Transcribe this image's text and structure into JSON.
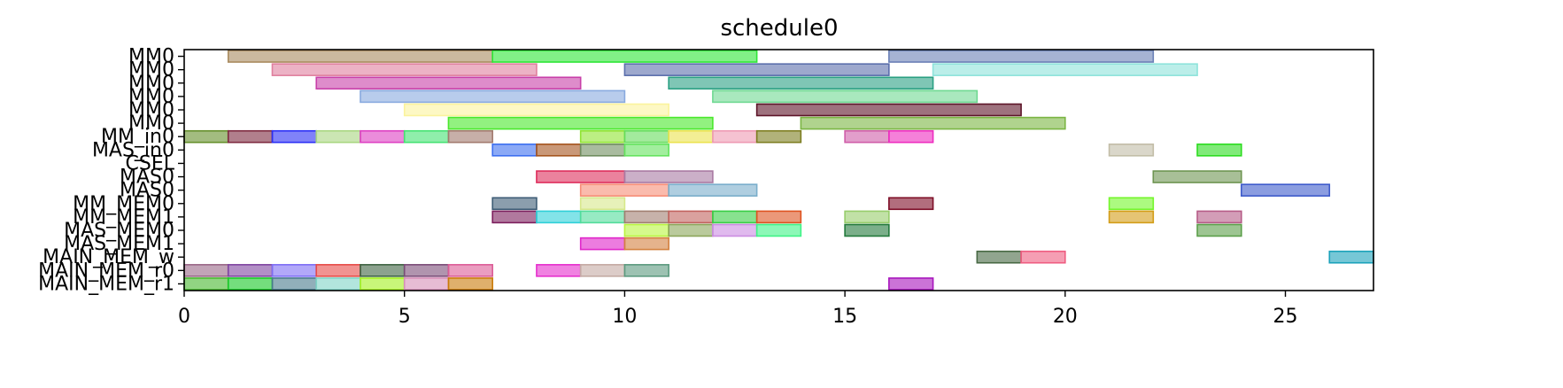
{
  "chart_data": {
    "type": "gantt",
    "title": "schedule0",
    "xlabel": "",
    "ylabel": "",
    "xlim": [
      0,
      27
    ],
    "xticks": [
      0,
      5,
      10,
      15,
      20,
      25
    ],
    "grid": false,
    "rows": [
      "MM0",
      "MM0",
      "MM0",
      "MM0",
      "MM0",
      "MM0",
      "MM_in0",
      "MAS_in0",
      "CSEL",
      "MAS0",
      "MAS0",
      "MM_MEM0",
      "MM_MEM1",
      "MAS_MEM0",
      "MAS_MEM1",
      "MAIN_MEM_w",
      "MAIN_MEM_r0",
      "MAIN_MEM_r1"
    ],
    "tasks": [
      {
        "row": 0,
        "start": 1,
        "end": 7,
        "color": "#a98b5f"
      },
      {
        "row": 0,
        "start": 7,
        "end": 13,
        "color": "#2ee637"
      },
      {
        "row": 0,
        "start": 16,
        "end": 22,
        "color": "#6a80b6"
      },
      {
        "row": 1,
        "start": 2,
        "end": 8,
        "color": "#e07f9e"
      },
      {
        "row": 1,
        "start": 10,
        "end": 16,
        "color": "#5b6eac"
      },
      {
        "row": 1,
        "start": 17,
        "end": 23,
        "color": "#8ee3db"
      },
      {
        "row": 2,
        "start": 3,
        "end": 9,
        "color": "#c83fa9"
      },
      {
        "row": 2,
        "start": 11,
        "end": 17,
        "color": "#2aa083"
      },
      {
        "row": 3,
        "start": 4,
        "end": 10,
        "color": "#89aadf"
      },
      {
        "row": 3,
        "start": 12,
        "end": 18,
        "color": "#6fd992"
      },
      {
        "row": 4,
        "start": 5,
        "end": 11,
        "color": "#fbf39c"
      },
      {
        "row": 4,
        "start": 13,
        "end": 19,
        "color": "#5d1428"
      },
      {
        "row": 5,
        "start": 6,
        "end": 12,
        "color": "#4ae82c"
      },
      {
        "row": 5,
        "start": 14,
        "end": 20,
        "color": "#7bb543"
      },
      {
        "row": 6,
        "start": 0,
        "end": 1,
        "color": "#658f2b"
      },
      {
        "row": 6,
        "start": 1,
        "end": 2,
        "color": "#7d2a3f"
      },
      {
        "row": 6,
        "start": 2,
        "end": 3,
        "color": "#2b2ff5"
      },
      {
        "row": 6,
        "start": 3,
        "end": 4,
        "color": "#a9d681"
      },
      {
        "row": 6,
        "start": 4,
        "end": 5,
        "color": "#de40c3"
      },
      {
        "row": 6,
        "start": 5,
        "end": 6,
        "color": "#45e273"
      },
      {
        "row": 6,
        "start": 6,
        "end": 7,
        "color": "#a27a6e"
      },
      {
        "row": 6,
        "start": 9,
        "end": 10,
        "color": "#8fe431"
      },
      {
        "row": 6,
        "start": 10,
        "end": 11,
        "color": "#65dc5c"
      },
      {
        "row": 6,
        "start": 11,
        "end": 12,
        "color": "#ebe34f"
      },
      {
        "row": 6,
        "start": 12,
        "end": 13,
        "color": "#ee9ab3"
      },
      {
        "row": 6,
        "start": 13,
        "end": 14,
        "color": "#7d7e21"
      },
      {
        "row": 6,
        "start": 15,
        "end": 16,
        "color": "#cf5da8"
      },
      {
        "row": 6,
        "start": 16,
        "end": 17,
        "color": "#ee2cc0"
      },
      {
        "row": 7,
        "start": 7,
        "end": 8,
        "color": "#3d6ff0"
      },
      {
        "row": 7,
        "start": 8,
        "end": 9,
        "color": "#a5541e"
      },
      {
        "row": 7,
        "start": 9,
        "end": 10,
        "color": "#6f8d5f"
      },
      {
        "row": 7,
        "start": 10,
        "end": 11,
        "color": "#64e35e"
      },
      {
        "row": 7,
        "start": 21,
        "end": 22,
        "color": "#c2bda7"
      },
      {
        "row": 7,
        "start": 23,
        "end": 24,
        "color": "#2cdc20"
      },
      {
        "row": 9,
        "start": 8,
        "end": 10,
        "color": "#de2e5c"
      },
      {
        "row": 9,
        "start": 10,
        "end": 12,
        "color": "#a97aa3"
      },
      {
        "row": 9,
        "start": 22,
        "end": 24,
        "color": "#6e9552"
      },
      {
        "row": 10,
        "start": 9,
        "end": 11,
        "color": "#f78d77"
      },
      {
        "row": 10,
        "start": 11,
        "end": 13,
        "color": "#7aaecb"
      },
      {
        "row": 10,
        "start": 24,
        "end": 26,
        "color": "#3e5bcb"
      },
      {
        "row": 11,
        "start": 7,
        "end": 8,
        "color": "#3e5d76"
      },
      {
        "row": 11,
        "start": 9,
        "end": 10,
        "color": "#d7e88b"
      },
      {
        "row": 11,
        "start": 16,
        "end": 17,
        "color": "#7e0e27"
      },
      {
        "row": 11,
        "start": 21,
        "end": 22,
        "color": "#74f62b"
      },
      {
        "row": 12,
        "start": 7,
        "end": 8,
        "color": "#7d1f5e"
      },
      {
        "row": 12,
        "start": 8,
        "end": 9,
        "color": "#2ed0d8"
      },
      {
        "row": 12,
        "start": 9,
        "end": 10,
        "color": "#52dc9b"
      },
      {
        "row": 12,
        "start": 10,
        "end": 11,
        "color": "#a17f71"
      },
      {
        "row": 12,
        "start": 11,
        "end": 12,
        "color": "#c2635e"
      },
      {
        "row": 12,
        "start": 12,
        "end": 13,
        "color": "#38cf45"
      },
      {
        "row": 12,
        "start": 13,
        "end": 14,
        "color": "#de5320"
      },
      {
        "row": 12,
        "start": 15,
        "end": 16,
        "color": "#97cd6b"
      },
      {
        "row": 12,
        "start": 21,
        "end": 22,
        "color": "#d39d17"
      },
      {
        "row": 12,
        "start": 23,
        "end": 24,
        "color": "#b65c87"
      },
      {
        "row": 13,
        "start": 10,
        "end": 11,
        "color": "#b9f540"
      },
      {
        "row": 13,
        "start": 11,
        "end": 12,
        "color": "#8ca65a"
      },
      {
        "row": 13,
        "start": 12,
        "end": 13,
        "color": "#cb8ce2"
      },
      {
        "row": 13,
        "start": 13,
        "end": 14,
        "color": "#3ff387"
      },
      {
        "row": 13,
        "start": 15,
        "end": 16,
        "color": "#237a3c"
      },
      {
        "row": 13,
        "start": 23,
        "end": 24,
        "color": "#5b9f4a"
      },
      {
        "row": 14,
        "start": 9,
        "end": 10,
        "color": "#e025ca"
      },
      {
        "row": 14,
        "start": 10,
        "end": 11,
        "color": "#d38140"
      },
      {
        "row": 15,
        "start": 18,
        "end": 19,
        "color": "#486944"
      },
      {
        "row": 15,
        "start": 19,
        "end": 20,
        "color": "#ef5d81"
      },
      {
        "row": 15,
        "start": 26,
        "end": 27,
        "color": "#1ba2ba"
      },
      {
        "row": 16,
        "start": 0,
        "end": 1,
        "color": "#9a6787"
      },
      {
        "row": 16,
        "start": 1,
        "end": 2,
        "color": "#7f44a0"
      },
      {
        "row": 16,
        "start": 2,
        "end": 3,
        "color": "#7e6ef5"
      },
      {
        "row": 16,
        "start": 3,
        "end": 4,
        "color": "#e74b47"
      },
      {
        "row": 16,
        "start": 4,
        "end": 5,
        "color": "#3f6443"
      },
      {
        "row": 16,
        "start": 5,
        "end": 6,
        "color": "#7b4c78"
      },
      {
        "row": 16,
        "start": 6,
        "end": 7,
        "color": "#dc5c96"
      },
      {
        "row": 16,
        "start": 8,
        "end": 9,
        "color": "#e62fcd"
      },
      {
        "row": 16,
        "start": 9,
        "end": 10,
        "color": "#c4aaa3"
      },
      {
        "row": 16,
        "start": 10,
        "end": 11,
        "color": "#5c9a7f"
      },
      {
        "row": 17,
        "start": 0,
        "end": 1,
        "color": "#48b82e"
      },
      {
        "row": 17,
        "start": 1,
        "end": 2,
        "color": "#18c826"
      },
      {
        "row": 17,
        "start": 2,
        "end": 3,
        "color": "#477a8c"
      },
      {
        "row": 17,
        "start": 3,
        "end": 4,
        "color": "#7fd3c6"
      },
      {
        "row": 17,
        "start": 4,
        "end": 5,
        "color": "#a3f020"
      },
      {
        "row": 17,
        "start": 5,
        "end": 6,
        "color": "#d78fb8"
      },
      {
        "row": 17,
        "start": 6,
        "end": 7,
        "color": "#ca7b0a"
      },
      {
        "row": 17,
        "start": 16,
        "end": 17,
        "color": "#a816bd"
      }
    ]
  }
}
